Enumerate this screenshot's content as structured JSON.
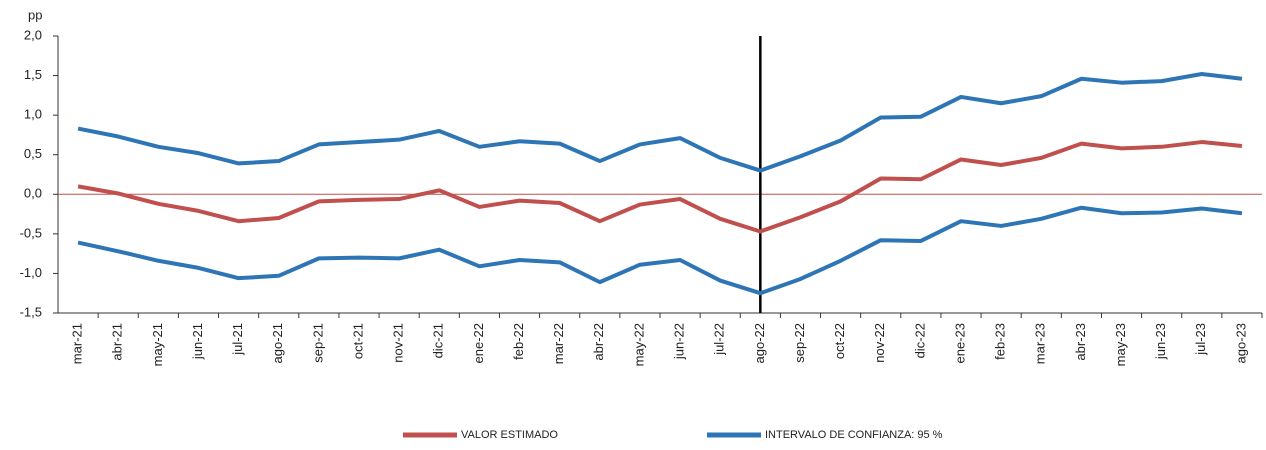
{
  "chart_data": {
    "type": "line",
    "y_label": "pp",
    "categories": [
      "mar-21",
      "abr-21",
      "may-21",
      "jun-21",
      "jul-21",
      "ago-21",
      "sep-21",
      "oct-21",
      "nov-21",
      "dic-21",
      "ene-22",
      "feb-22",
      "mar-22",
      "abr-22",
      "may-22",
      "jun-22",
      "jul-22",
      "ago-22",
      "sep-22",
      "oct-22",
      "nov-22",
      "dic-22",
      "ene-23",
      "feb-23",
      "mar-23",
      "abr-23",
      "may-23",
      "jun-23",
      "jul-23",
      "ago-23"
    ],
    "series": [
      {
        "name": "VALOR ESTIMADO",
        "color": "#c0504d",
        "values": [
          0.1,
          0.01,
          -0.12,
          -0.21,
          -0.34,
          -0.3,
          -0.09,
          -0.07,
          -0.06,
          0.05,
          -0.16,
          -0.08,
          -0.11,
          -0.34,
          -0.13,
          -0.06,
          -0.31,
          -0.47,
          -0.29,
          -0.09,
          0.2,
          0.19,
          0.44,
          0.37,
          0.46,
          0.64,
          0.58,
          0.6,
          0.66,
          0.61
        ]
      },
      {
        "name": "INTERVALO DE CONFIANZA: 95 %",
        "color": "#2e75b6",
        "upper": [
          0.83,
          0.73,
          0.6,
          0.52,
          0.39,
          0.42,
          0.63,
          0.66,
          0.69,
          0.8,
          0.6,
          0.67,
          0.64,
          0.42,
          0.63,
          0.71,
          0.46,
          0.3,
          0.48,
          0.68,
          0.97,
          0.98,
          1.23,
          1.15,
          1.24,
          1.46,
          1.41,
          1.43,
          1.52,
          1.46
        ],
        "lower": [
          -0.61,
          -0.72,
          -0.84,
          -0.93,
          -1.06,
          -1.03,
          -0.81,
          -0.8,
          -0.81,
          -0.7,
          -0.91,
          -0.83,
          -0.86,
          -1.11,
          -0.89,
          -0.83,
          -1.09,
          -1.25,
          -1.07,
          -0.84,
          -0.58,
          -0.59,
          -0.34,
          -0.4,
          -0.31,
          -0.17,
          -0.24,
          -0.23,
          -0.18,
          -0.24
        ]
      }
    ],
    "ylim": [
      -1.5,
      2.0
    ],
    "yticks": [
      {
        "value": -1.5,
        "label": "-1,5"
      },
      {
        "value": -1,
        "label": "-1,0"
      },
      {
        "value": -0.5,
        "label": "-0,5"
      },
      {
        "value": 0,
        "label": "0,0"
      },
      {
        "value": 0.5,
        "label": "0,5"
      },
      {
        "value": 1,
        "label": "1,0"
      },
      {
        "value": 1.5,
        "label": "1,5"
      },
      {
        "value": 2,
        "label": "2,0"
      }
    ],
    "zero_line_color": "#c0504d",
    "vline": "ago-22"
  }
}
